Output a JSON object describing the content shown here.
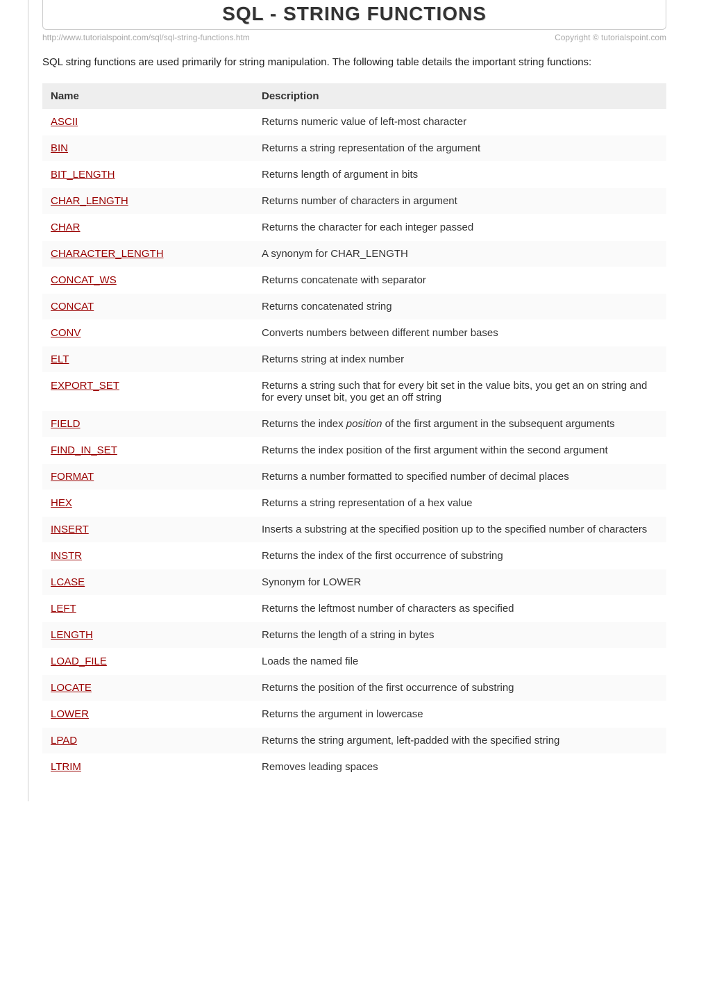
{
  "title": "SQL - STRING FUNCTIONS",
  "url": "http://www.tutorialspoint.com/sql/sql-string-functions.htm",
  "copyright": "Copyright © tutorialspoint.com",
  "intro": "SQL string functions are used primarily for string manipulation. The following table details the important string functions:",
  "table": {
    "headers": {
      "name": "Name",
      "description": "Description"
    },
    "rows": [
      {
        "name": "ASCII",
        "desc": "Returns numeric value of left-most character"
      },
      {
        "name": "BIN",
        "desc": "Returns a string representation of the argument"
      },
      {
        "name": "BIT_LENGTH",
        "desc": "Returns length of argument in bits"
      },
      {
        "name": "CHAR_LENGTH",
        "desc": "Returns number of characters in argument"
      },
      {
        "name": "CHAR",
        "desc": "Returns the character for each integer passed"
      },
      {
        "name": "CHARACTER_LENGTH",
        "desc": "A synonym for CHAR_LENGTH"
      },
      {
        "name": "CONCAT_WS",
        "desc": "Returns concatenate with separator"
      },
      {
        "name": "CONCAT",
        "desc": "Returns concatenated string"
      },
      {
        "name": "CONV",
        "desc": "Converts numbers between different number bases"
      },
      {
        "name": "ELT",
        "desc": "Returns string at index number"
      },
      {
        "name": "EXPORT_SET",
        "desc": "Returns a string such that for every bit set in the value bits, you get an on string and for every unset bit, you get an off string"
      },
      {
        "name": "FIELD",
        "desc_pre": "Returns the index ",
        "desc_italic": "position",
        "desc_post": " of the first argument in the subsequent arguments"
      },
      {
        "name": "FIND_IN_SET",
        "desc": "Returns the index position of the first argument within the second argument"
      },
      {
        "name": "FORMAT",
        "desc": "Returns a number formatted to specified number of decimal places"
      },
      {
        "name": "HEX",
        "desc": "Returns a string representation of a hex value"
      },
      {
        "name": "INSERT",
        "desc": "Inserts a substring at the specified position up to the specified number of characters"
      },
      {
        "name": "INSTR",
        "desc": "Returns the index of the first occurrence of substring"
      },
      {
        "name": "LCASE",
        "desc": "Synonym for LOWER"
      },
      {
        "name": "LEFT",
        "desc": "Returns the leftmost number of characters as specified"
      },
      {
        "name": "LENGTH",
        "desc": "Returns the length of a string in bytes"
      },
      {
        "name": "LOAD_FILE",
        "desc": "Loads the named file"
      },
      {
        "name": "LOCATE",
        "desc": "Returns the position of the first occurrence of substring"
      },
      {
        "name": "LOWER",
        "desc": "Returns the argument in lowercase"
      },
      {
        "name": "LPAD",
        "desc": "Returns the string argument, left-padded with the specified string"
      },
      {
        "name": "LTRIM",
        "desc": "Removes leading spaces"
      }
    ]
  },
  "colors": {
    "link": "#900000",
    "header_bg": "#eeeeee",
    "text": "#333333",
    "meta_text": "#aaaaaa",
    "border": "#cccccc"
  }
}
